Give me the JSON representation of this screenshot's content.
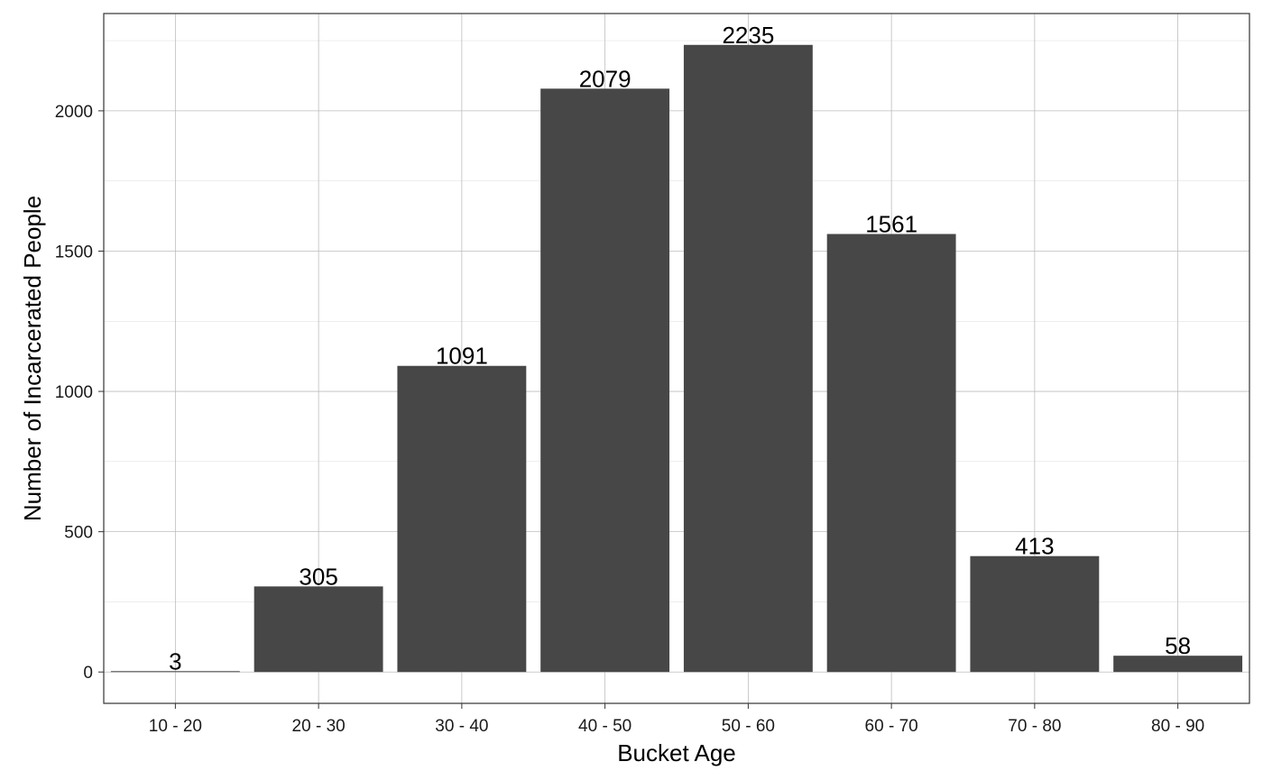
{
  "chart_data": {
    "type": "bar",
    "categories": [
      "10 - 20",
      "20 - 30",
      "30 - 40",
      "40 - 50",
      "50 - 60",
      "60 - 70",
      "70 - 80",
      "80 - 90"
    ],
    "values": [
      3,
      305,
      1091,
      2079,
      2235,
      1561,
      413,
      58
    ],
    "xlabel": "Bucket Age",
    "ylabel": "Number of Incarcerated People",
    "ylim": [
      -111.75,
      2346.75
    ],
    "yticks": [
      0,
      500,
      1000,
      1500,
      2000
    ],
    "grid": true,
    "bar_color": "#474747",
    "show_data_labels": true
  }
}
